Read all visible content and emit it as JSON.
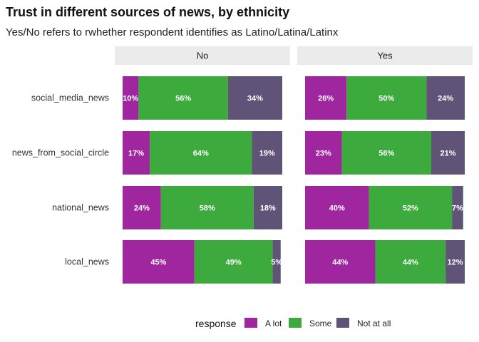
{
  "title": "Trust in different sources of news, by ethnicity",
  "subtitle": "Yes/No refers to rwhether respondent identifies as Latino/Latina/Latinx",
  "chart_data": {
    "type": "bar",
    "orientation": "horizontal",
    "stacked": "percent",
    "facets": [
      "No",
      "Yes"
    ],
    "categories": [
      "social_media_news",
      "news_from_social_circle",
      "national_news",
      "local_news"
    ],
    "series": [
      {
        "name": "A lot",
        "color": "#a026a0",
        "values": {
          "No": [
            10,
            17,
            24,
            45
          ],
          "Yes": [
            26,
            23,
            40,
            44
          ]
        }
      },
      {
        "name": "Some",
        "color": "#3caa3c",
        "values": {
          "No": [
            56,
            64,
            58,
            49
          ],
          "Yes": [
            50,
            56,
            52,
            44
          ]
        }
      },
      {
        "name": "Not at all",
        "color": "#5f5478",
        "values": {
          "No": [
            34,
            19,
            18,
            5
          ],
          "Yes": [
            24,
            21,
            7,
            12
          ]
        }
      }
    ],
    "xlim": [
      0,
      100
    ],
    "grid": false,
    "legend": {
      "title": "response",
      "position": "bottom"
    }
  }
}
